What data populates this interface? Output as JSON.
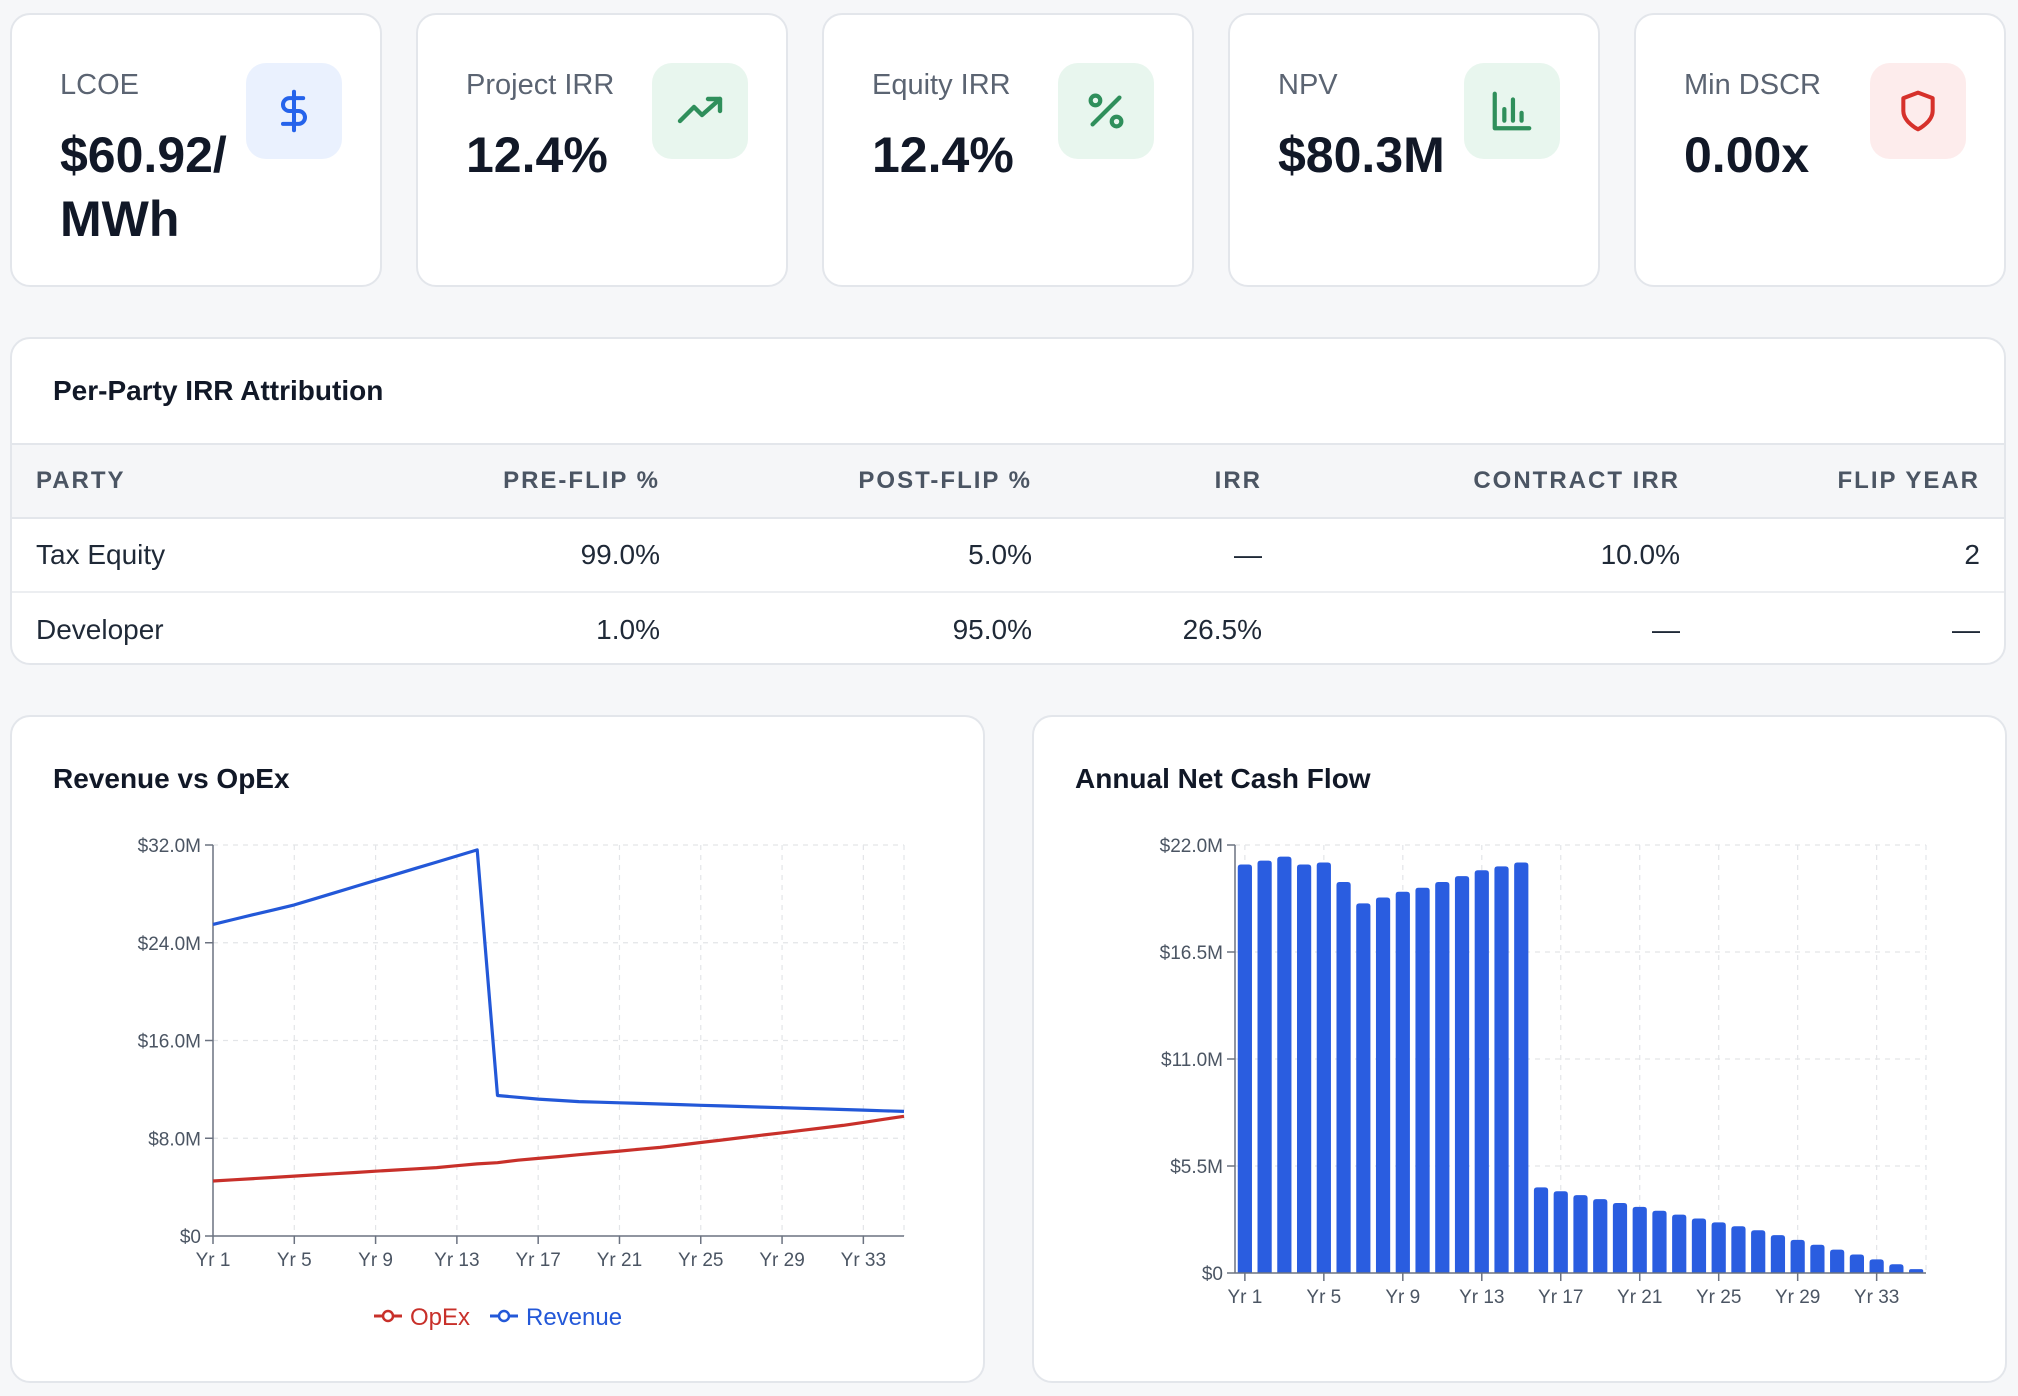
{
  "kpis": [
    {
      "label": "LCOE",
      "value": "$60.92/ MWh",
      "icon": "dollar-icon",
      "icon_color": "#2563eb",
      "icon_bg": "#eaf1fe"
    },
    {
      "label": "Project IRR",
      "value": "12.4%",
      "icon": "trending-up-icon",
      "icon_color": "#2f8f5b",
      "icon_bg": "#e8f6ee"
    },
    {
      "label": "Equity IRR",
      "value": "12.4%",
      "icon": "percent-icon",
      "icon_color": "#2f8f5b",
      "icon_bg": "#e8f6ee"
    },
    {
      "label": "NPV",
      "value": "$80.3M",
      "icon": "bar-chart-icon",
      "icon_color": "#2f8f5b",
      "icon_bg": "#e8f6ee"
    },
    {
      "label": "Min DSCR",
      "value": "0.00x",
      "icon": "shield-icon",
      "icon_color": "#d6312b",
      "icon_bg": "#fdecec"
    }
  ],
  "irr_table": {
    "title": "Per-Party IRR Attribution",
    "headers": [
      "Party",
      "Pre-Flip %",
      "Post-Flip %",
      "IRR",
      "Contract IRR",
      "Flip Year"
    ],
    "rows": [
      [
        "Tax Equity",
        "99.0%",
        "5.0%",
        "—",
        "10.0%",
        "2"
      ],
      [
        "Developer",
        "1.0%",
        "95.0%",
        "26.5%",
        "—",
        "—"
      ]
    ]
  },
  "revenue_chart": {
    "title": "Revenue vs OpEx",
    "legend": [
      {
        "name": "OpEx",
        "color": "#c8302a"
      },
      {
        "name": "Revenue",
        "color": "#2358d8"
      }
    ]
  },
  "cashflow_chart": {
    "title": "Annual Net Cash Flow",
    "bar_color": "#2a5de0"
  },
  "chart_data": [
    {
      "type": "line",
      "title": "Revenue vs OpEx",
      "x": [
        "Yr 1",
        "Yr 2",
        "Yr 3",
        "Yr 4",
        "Yr 5",
        "Yr 6",
        "Yr 7",
        "Yr 8",
        "Yr 9",
        "Yr 10",
        "Yr 11",
        "Yr 12",
        "Yr 13",
        "Yr 14",
        "Yr 15",
        "Yr 16",
        "Yr 17",
        "Yr 18",
        "Yr 19",
        "Yr 20",
        "Yr 21",
        "Yr 22",
        "Yr 23",
        "Yr 24",
        "Yr 25",
        "Yr 26",
        "Yr 27",
        "Yr 28",
        "Yr 29",
        "Yr 30",
        "Yr 31",
        "Yr 32",
        "Yr 33",
        "Yr 34",
        "Yr 35"
      ],
      "xticks": [
        "Yr 1",
        "Yr 5",
        "Yr 9",
        "Yr 13",
        "Yr 17",
        "Yr 21",
        "Yr 25",
        "Yr 29",
        "Yr 33"
      ],
      "yticks": [
        "$0",
        "$8.0M",
        "$16.0M",
        "$24.0M",
        "$32.0M"
      ],
      "ytick_values": [
        0,
        8,
        16,
        24,
        32
      ],
      "ylim": [
        0,
        32
      ],
      "unit": "$M",
      "series": [
        {
          "name": "OpEx",
          "color": "#c8302a",
          "values": [
            4.5,
            4.6,
            4.7,
            4.8,
            4.9,
            5.0,
            5.1,
            5.2,
            5.3,
            5.4,
            5.5,
            5.6,
            5.75,
            5.9,
            6.0,
            6.2,
            6.35,
            6.5,
            6.65,
            6.8,
            6.95,
            7.1,
            7.25,
            7.45,
            7.65,
            7.85,
            8.05,
            8.25,
            8.45,
            8.65,
            8.85,
            9.05,
            9.3,
            9.55,
            9.8
          ]
        },
        {
          "name": "Revenue",
          "color": "#2358d8",
          "values": [
            25.5,
            25.9,
            26.3,
            26.7,
            27.1,
            27.6,
            28.1,
            28.6,
            29.1,
            29.6,
            30.1,
            30.6,
            31.1,
            31.6,
            11.5,
            11.35,
            11.2,
            11.1,
            11.0,
            10.95,
            10.9,
            10.85,
            10.8,
            10.75,
            10.7,
            10.65,
            10.6,
            10.55,
            10.5,
            10.45,
            10.4,
            10.35,
            10.3,
            10.25,
            10.2
          ]
        }
      ],
      "grid": true,
      "legend_position": "bottom-center"
    },
    {
      "type": "bar",
      "title": "Annual Net Cash Flow",
      "categories": [
        "Yr 1",
        "Yr 2",
        "Yr 3",
        "Yr 4",
        "Yr 5",
        "Yr 6",
        "Yr 7",
        "Yr 8",
        "Yr 9",
        "Yr 10",
        "Yr 11",
        "Yr 12",
        "Yr 13",
        "Yr 14",
        "Yr 15",
        "Yr 16",
        "Yr 17",
        "Yr 18",
        "Yr 19",
        "Yr 20",
        "Yr 21",
        "Yr 22",
        "Yr 23",
        "Yr 24",
        "Yr 25",
        "Yr 26",
        "Yr 27",
        "Yr 28",
        "Yr 29",
        "Yr 30",
        "Yr 31",
        "Yr 32",
        "Yr 33",
        "Yr 34",
        "Yr 35"
      ],
      "xticks": [
        "Yr 1",
        "Yr 5",
        "Yr 9",
        "Yr 13",
        "Yr 17",
        "Yr 21",
        "Yr 25",
        "Yr 29",
        "Yr 33"
      ],
      "yticks": [
        "$0",
        "$5.5M",
        "$11.0M",
        "$16.5M",
        "$22.0M"
      ],
      "ytick_values": [
        0,
        5.5,
        11,
        16.5,
        22
      ],
      "ylim": [
        0,
        22
      ],
      "unit": "$M",
      "values": [
        21.0,
        21.2,
        21.4,
        21.0,
        21.1,
        20.1,
        19.0,
        19.3,
        19.6,
        19.8,
        20.1,
        20.4,
        20.7,
        20.9,
        21.1,
        4.4,
        4.2,
        4.0,
        3.8,
        3.6,
        3.4,
        3.2,
        3.0,
        2.8,
        2.6,
        2.4,
        2.2,
        1.95,
        1.7,
        1.45,
        1.2,
        0.95,
        0.7,
        0.45,
        0.2
      ],
      "grid": true
    }
  ]
}
